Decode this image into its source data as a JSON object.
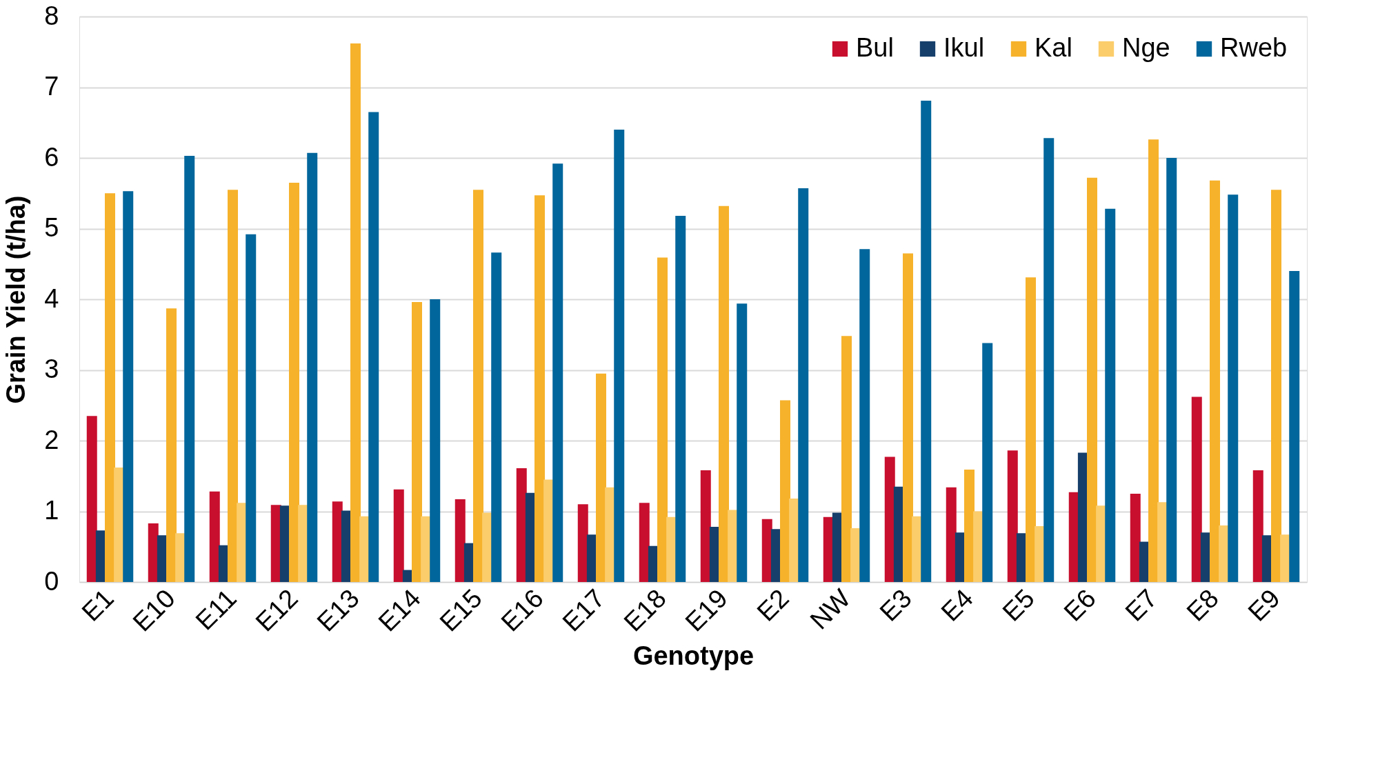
{
  "chart_data": {
    "type": "bar",
    "xlabel": "Genotype",
    "ylabel": "Grain Yield (t/ha)",
    "categories": [
      "E1",
      "E10",
      "E11",
      "E12",
      "E13",
      "E14",
      "E15",
      "E16",
      "E17",
      "E18",
      "E19",
      "E2",
      "NW",
      "E3",
      "E4",
      "E5",
      "E6",
      "E7",
      "E8",
      "E9"
    ],
    "series": [
      {
        "name": "Bul",
        "color": "#c8102e",
        "values": [
          2.35,
          0.83,
          1.28,
          1.09,
          1.14,
          1.31,
          1.17,
          1.61,
          1.1,
          1.12,
          1.58,
          0.89,
          0.92,
          1.77,
          1.34,
          1.86,
          1.27,
          1.25,
          2.62,
          1.58
        ]
      },
      {
        "name": "Ikul",
        "color": "#173f6b",
        "values": [
          0.73,
          0.66,
          0.52,
          1.08,
          1.01,
          0.17,
          0.55,
          1.26,
          0.67,
          0.51,
          0.78,
          0.75,
          0.98,
          1.35,
          0.7,
          0.69,
          1.83,
          0.57,
          0.7,
          0.66
        ]
      },
      {
        "name": "Kal",
        "color": "#f6b22b",
        "values": [
          5.5,
          3.87,
          5.55,
          5.65,
          7.62,
          3.96,
          5.55,
          5.47,
          2.95,
          4.59,
          5.32,
          2.57,
          3.48,
          4.65,
          1.59,
          4.31,
          5.72,
          6.26,
          5.68,
          5.55
        ]
      },
      {
        "name": "Nge",
        "color": "#fbcd6b",
        "values": [
          1.62,
          0.69,
          1.12,
          1.09,
          0.93,
          0.93,
          0.98,
          1.45,
          1.34,
          0.92,
          1.02,
          1.18,
          0.76,
          0.93,
          1.0,
          0.79,
          1.08,
          1.13,
          0.8,
          0.67
        ]
      },
      {
        "name": "Rweb",
        "color": "#00669c",
        "values": [
          5.53,
          6.03,
          4.92,
          6.07,
          6.65,
          4.0,
          4.66,
          5.92,
          6.4,
          5.18,
          3.94,
          5.57,
          4.71,
          6.81,
          3.38,
          6.28,
          5.28,
          6.0,
          5.48,
          4.4
        ]
      }
    ],
    "ylim": [
      0,
      8
    ],
    "yticks": [
      0,
      1,
      2,
      3,
      4,
      5,
      6,
      7,
      8
    ],
    "grid": "y",
    "legend": "top right"
  }
}
